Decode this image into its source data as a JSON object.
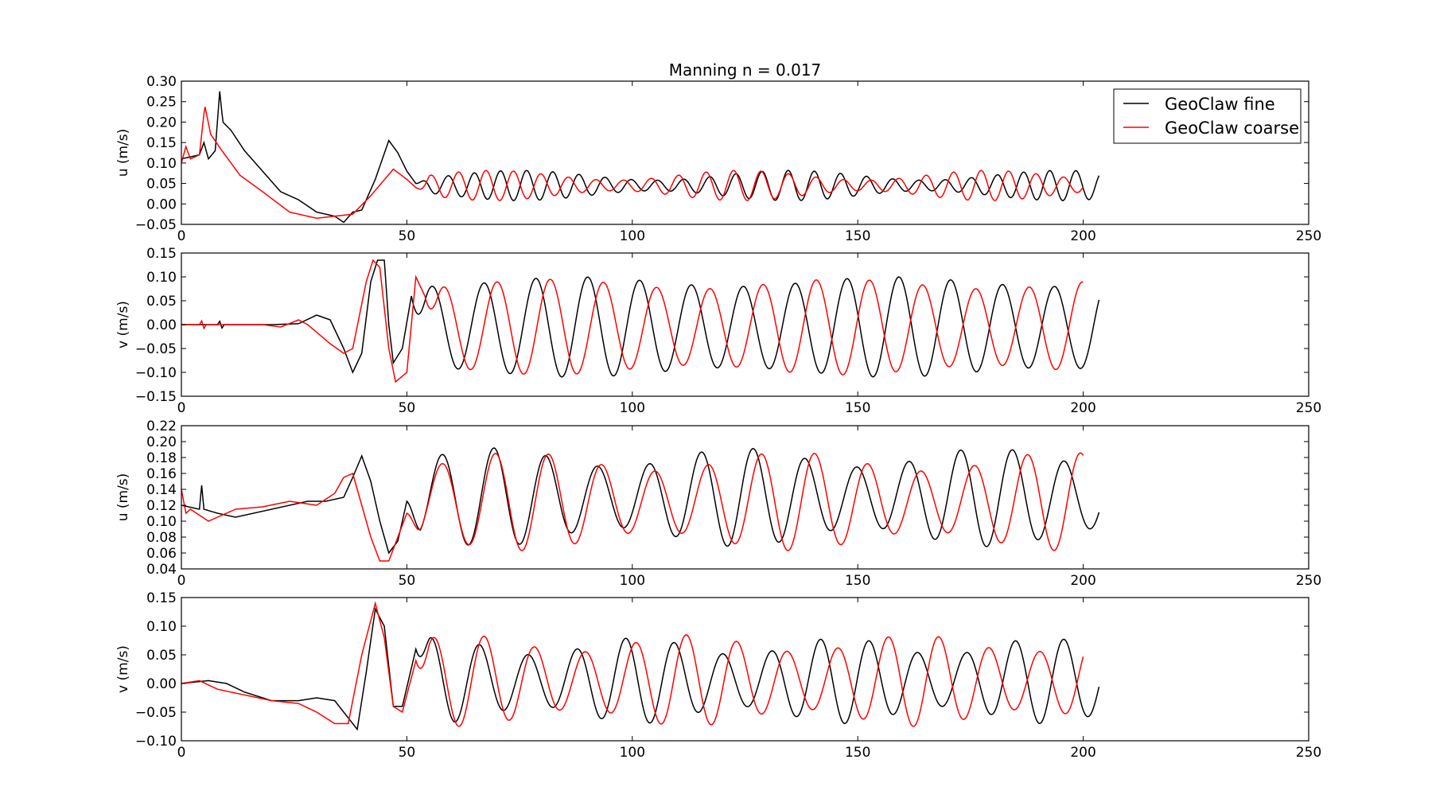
{
  "figure": {
    "title": "Manning n = 0.017",
    "colors": {
      "GeoClaw fine": "#000000",
      "GeoClaw coarse": "#ff0000",
      "background": "#ffffff"
    }
  },
  "legend": {
    "placement": "top-right",
    "entries": [
      "GeoClaw fine",
      "GeoClaw coarse"
    ]
  },
  "chart_data": [
    {
      "type": "line",
      "ylabel": "u (m/s)",
      "xlim": [
        0,
        250
      ],
      "ylim": [
        -0.05,
        0.3
      ],
      "xticks": [
        0,
        50,
        100,
        150,
        200,
        250
      ],
      "yticks": [
        -0.05,
        0.0,
        0.05,
        0.1,
        0.15,
        0.2,
        0.25,
        0.3
      ],
      "ytick_labels": [
        "−0.05",
        "0.00",
        "0.05",
        "0.10",
        "0.15",
        "0.20",
        "0.25",
        "0.30"
      ],
      "series": [
        {
          "name": "GeoClaw fine",
          "color": "#000000",
          "kind": "sine",
          "period": 5.8,
          "phase": 0.3,
          "amp": 0.025,
          "mean": 0.045,
          "amp_mod": 0.012,
          "mod_period": 60,
          "lead": [
            [
              0,
              0.11
            ],
            [
              4,
              0.12
            ],
            [
              5,
              0.15
            ],
            [
              6,
              0.11
            ],
            [
              7.5,
              0.13
            ],
            [
              8.5,
              0.275
            ],
            [
              9.2,
              0.2
            ],
            [
              11,
              0.18
            ],
            [
              14,
              0.13
            ],
            [
              18,
              0.08
            ],
            [
              22,
              0.03
            ],
            [
              26,
              0.01
            ],
            [
              30,
              -0.02
            ],
            [
              34,
              -0.03
            ],
            [
              36,
              -0.045
            ],
            [
              38,
              -0.02
            ],
            [
              40,
              -0.015
            ],
            [
              43,
              0.06
            ],
            [
              46,
              0.155
            ],
            [
              48,
              0.125
            ],
            [
              50,
              0.08
            ],
            [
              52,
              0.05
            ]
          ],
          "t_end": 203.5
        },
        {
          "name": "GeoClaw coarse",
          "color": "#ff0000",
          "kind": "sine",
          "period": 6.1,
          "phase": 1.1,
          "amp": 0.025,
          "mean": 0.045,
          "amp_mod": 0.012,
          "mod_period": 55,
          "lead": [
            [
              0,
              0.1
            ],
            [
              1,
              0.14
            ],
            [
              2,
              0.11
            ],
            [
              4,
              0.12
            ],
            [
              5.2,
              0.24
            ],
            [
              6.5,
              0.17
            ],
            [
              9,
              0.13
            ],
            [
              13,
              0.07
            ],
            [
              18,
              0.03
            ],
            [
              24,
              -0.02
            ],
            [
              30,
              -0.035
            ],
            [
              34,
              -0.03
            ],
            [
              38,
              -0.025
            ],
            [
              42,
              0.02
            ],
            [
              47,
              0.085
            ],
            [
              50,
              0.06
            ],
            [
              52,
              0.04
            ]
          ],
          "t_end": 200
        }
      ]
    },
    {
      "type": "line",
      "ylabel": "v (m/s)",
      "xlim": [
        0,
        250
      ],
      "ylim": [
        -0.15,
        0.15
      ],
      "xticks": [
        0,
        50,
        100,
        150,
        200,
        250
      ],
      "yticks": [
        -0.15,
        -0.1,
        -0.05,
        0.0,
        0.05,
        0.1,
        0.15
      ],
      "ytick_labels": [
        "−0.15",
        "−0.10",
        "−0.05",
        "0.00",
        "0.05",
        "0.10",
        "0.15"
      ],
      "series": [
        {
          "name": "GeoClaw fine",
          "color": "#000000",
          "kind": "sine",
          "period": 11.5,
          "phase": 2.6,
          "amp": 0.095,
          "mean": -0.005,
          "amp_mod": 0.01,
          "mod_period": 70,
          "lead": [
            [
              0,
              0.0
            ],
            [
              8,
              0.0
            ],
            [
              8.5,
              0.007
            ],
            [
              9,
              -0.007
            ],
            [
              9.5,
              0.0
            ],
            [
              20,
              0.0
            ],
            [
              26,
              0.002
            ],
            [
              30,
              0.02
            ],
            [
              33,
              0.01
            ],
            [
              36,
              -0.05
            ],
            [
              38,
              -0.1
            ],
            [
              40,
              -0.06
            ],
            [
              42,
              0.09
            ],
            [
              43.5,
              0.135
            ],
            [
              45,
              0.135
            ],
            [
              46,
              0.0
            ],
            [
              47,
              -0.08
            ],
            [
              49,
              -0.05
            ],
            [
              51,
              0.06
            ]
          ],
          "t_end": 203.5
        },
        {
          "name": "GeoClaw coarse",
          "color": "#ff0000",
          "kind": "sine",
          "period": 11.8,
          "phase": 2.0,
          "amp": 0.09,
          "mean": -0.005,
          "amp_mod": 0.01,
          "mod_period": 65,
          "lead": [
            [
              0,
              0.0
            ],
            [
              4,
              0.0
            ],
            [
              4.5,
              0.008
            ],
            [
              5,
              -0.008
            ],
            [
              5.5,
              0.0
            ],
            [
              18,
              0.0
            ],
            [
              22,
              -0.005
            ],
            [
              26,
              0.01
            ],
            [
              28,
              0.0
            ],
            [
              33,
              -0.04
            ],
            [
              36,
              -0.06
            ],
            [
              38,
              -0.05
            ],
            [
              41,
              0.09
            ],
            [
              42.5,
              0.135
            ],
            [
              44,
              0.12
            ],
            [
              46,
              -0.05
            ],
            [
              47.5,
              -0.12
            ],
            [
              50,
              -0.1
            ],
            [
              52,
              0.1
            ],
            [
              54,
              0.06
            ]
          ],
          "t_end": 200
        }
      ]
    },
    {
      "type": "line",
      "ylabel": "u (m/s)",
      "xlim": [
        0,
        250
      ],
      "ylim": [
        0.04,
        0.22
      ],
      "xticks": [
        0,
        50,
        100,
        150,
        200,
        250
      ],
      "yticks": [
        0.04,
        0.06,
        0.08,
        0.1,
        0.12,
        0.14,
        0.16,
        0.18,
        0.2,
        0.22
      ],
      "ytick_labels": [
        "0.04",
        "0.06",
        "0.08",
        "0.10",
        "0.12",
        "0.14",
        "0.16",
        "0.18",
        "0.20",
        "0.22"
      ],
      "series": [
        {
          "name": "GeoClaw fine",
          "color": "#000000",
          "kind": "sine",
          "period": 11.5,
          "phase": 1.4,
          "amp": 0.05,
          "mean": 0.13,
          "amp_mod": 0.012,
          "mod_period": 55,
          "lead": [
            [
              0,
              0.12
            ],
            [
              4,
              0.115
            ],
            [
              4.5,
              0.145
            ],
            [
              5,
              0.115
            ],
            [
              8,
              0.11
            ],
            [
              12,
              0.105
            ],
            [
              16,
              0.11
            ],
            [
              20,
              0.115
            ],
            [
              24,
              0.12
            ],
            [
              28,
              0.125
            ],
            [
              32,
              0.125
            ],
            [
              36,
              0.13
            ],
            [
              38,
              0.155
            ],
            [
              40,
              0.182
            ],
            [
              42,
              0.15
            ],
            [
              44,
              0.1
            ],
            [
              46,
              0.06
            ],
            [
              48,
              0.075
            ],
            [
              50,
              0.125
            ]
          ],
          "t_end": 203.5
        },
        {
          "name": "GeoClaw coarse",
          "color": "#ff0000",
          "kind": "sine",
          "period": 11.8,
          "phase": 2.2,
          "amp": 0.05,
          "mean": 0.125,
          "amp_mod": 0.012,
          "mod_period": 60,
          "lead": [
            [
              0,
              0.14
            ],
            [
              1,
              0.11
            ],
            [
              2,
              0.115
            ],
            [
              6,
              0.1
            ],
            [
              12,
              0.115
            ],
            [
              18,
              0.118
            ],
            [
              24,
              0.125
            ],
            [
              30,
              0.12
            ],
            [
              34,
              0.135
            ],
            [
              36,
              0.155
            ],
            [
              38,
              0.16
            ],
            [
              40,
              0.12
            ],
            [
              42,
              0.08
            ],
            [
              44,
              0.05
            ],
            [
              46,
              0.05
            ],
            [
              48,
              0.08
            ],
            [
              50,
              0.11
            ]
          ],
          "t_end": 200
        }
      ]
    },
    {
      "type": "line",
      "ylabel": "v (m/s)",
      "xlim": [
        0,
        250
      ],
      "ylim": [
        -0.1,
        0.15
      ],
      "xticks": [
        0,
        50,
        100,
        150,
        200,
        250
      ],
      "yticks": [
        -0.1,
        -0.05,
        0.0,
        0.05,
        0.1,
        0.15
      ],
      "ytick_labels": [
        "−0.10",
        "−0.05",
        "0.00",
        "0.05",
        "0.10",
        "0.15"
      ],
      "series": [
        {
          "name": "GeoClaw fine",
          "color": "#000000",
          "kind": "sine",
          "period": 10.8,
          "phase": 0.8,
          "amp": 0.06,
          "mean": 0.005,
          "amp_mod": 0.015,
          "mod_period": 45,
          "lead": [
            [
              0,
              0.0
            ],
            [
              6,
              0.005
            ],
            [
              10,
              0.0
            ],
            [
              14,
              -0.015
            ],
            [
              20,
              -0.03
            ],
            [
              26,
              -0.03
            ],
            [
              30,
              -0.025
            ],
            [
              34,
              -0.03
            ],
            [
              37,
              -0.06
            ],
            [
              39,
              -0.08
            ],
            [
              41,
              0.02
            ],
            [
              43,
              0.13
            ],
            [
              45,
              0.1
            ],
            [
              47,
              -0.04
            ],
            [
              49,
              -0.04
            ],
            [
              52,
              0.06
            ]
          ],
          "t_end": 203.5
        },
        {
          "name": "GeoClaw coarse",
          "color": "#ff0000",
          "kind": "sine",
          "period": 11.2,
          "phase": 1.6,
          "amp": 0.065,
          "mean": 0.005,
          "amp_mod": 0.015,
          "mod_period": 50,
          "lead": [
            [
              0,
              0.0
            ],
            [
              4,
              0.005
            ],
            [
              8,
              -0.01
            ],
            [
              14,
              -0.02
            ],
            [
              20,
              -0.03
            ],
            [
              26,
              -0.035
            ],
            [
              30,
              -0.05
            ],
            [
              34,
              -0.07
            ],
            [
              37,
              -0.07
            ],
            [
              40,
              0.05
            ],
            [
              43,
              0.14
            ],
            [
              45,
              0.08
            ],
            [
              47,
              -0.04
            ],
            [
              49,
              -0.05
            ],
            [
              52,
              0.04
            ]
          ],
          "t_end": 200
        }
      ]
    }
  ]
}
